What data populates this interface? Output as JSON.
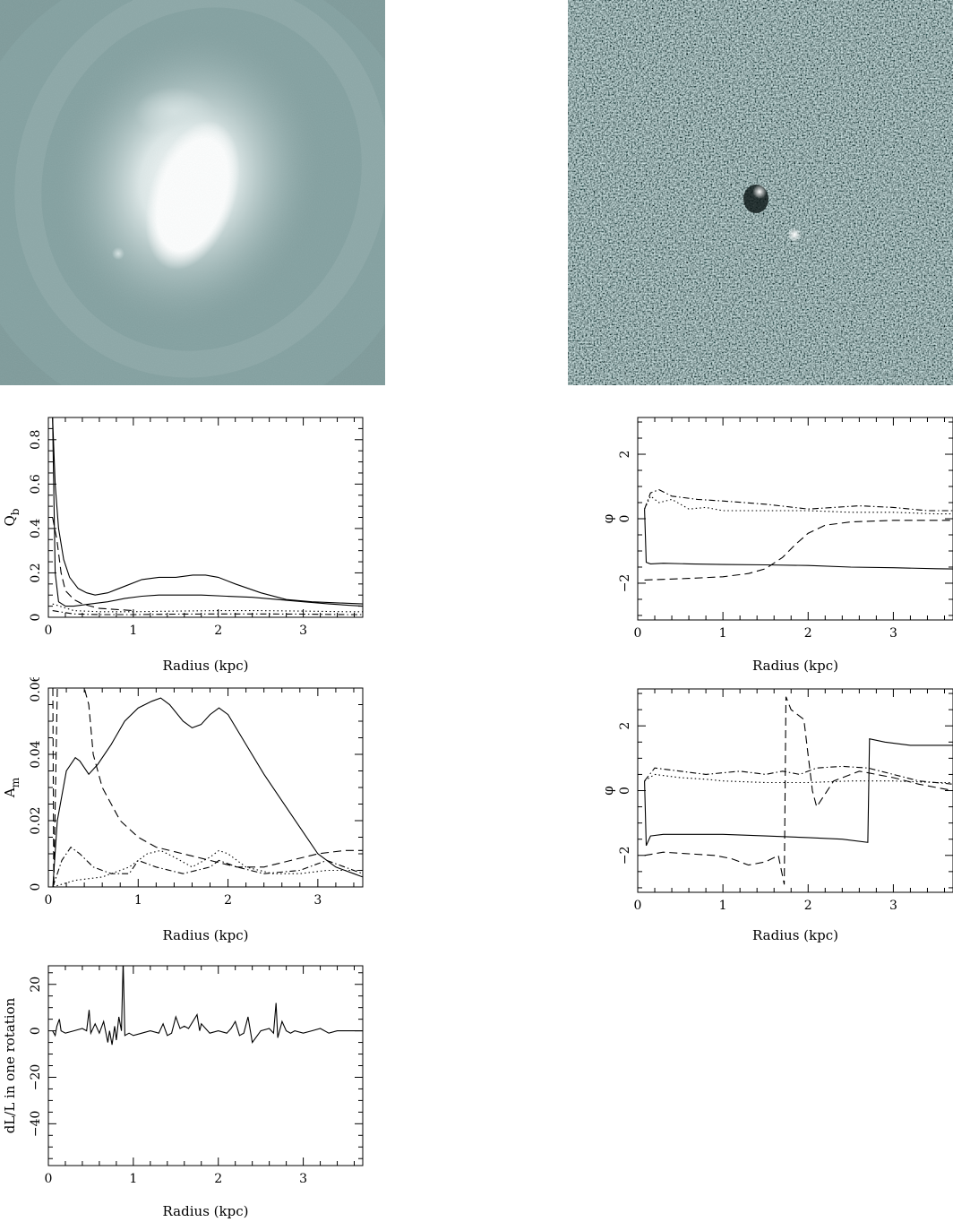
{
  "images": [
    {
      "name": "galaxy-image",
      "type": "image",
      "colors": {
        "bg": "#7f9a9a",
        "core": "#ffffff"
      }
    },
    {
      "name": "residual-image",
      "type": "image",
      "colors": {
        "bg": "#2f4848",
        "speck": "#cfe0e0"
      }
    }
  ],
  "chart_data": [
    {
      "id": "qb",
      "type": "line",
      "xlabel": "Radius (kpc)",
      "ylabel": "Q",
      "ylabel_sub": "b",
      "xlim": [
        0,
        3.7
      ],
      "ylim": [
        0,
        0.9
      ],
      "xticks": [
        0,
        1,
        2,
        3
      ],
      "yticks": [
        0,
        0.2,
        0.4,
        0.6,
        0.8
      ],
      "ytick_labels": [
        "0",
        "0.2",
        "0.4",
        "0.6",
        "0.8"
      ],
      "series": [
        {
          "style": "solid",
          "x": [
            0.05,
            0.08,
            0.12,
            0.18,
            0.25,
            0.35,
            0.45,
            0.55,
            0.7,
            0.9,
            1.1,
            1.3,
            1.5,
            1.7,
            1.85,
            2.0,
            2.2,
            2.5,
            2.8,
            3.1,
            3.4,
            3.7
          ],
          "y": [
            0.9,
            0.6,
            0.4,
            0.26,
            0.18,
            0.13,
            0.11,
            0.1,
            0.11,
            0.14,
            0.17,
            0.18,
            0.18,
            0.19,
            0.19,
            0.18,
            0.15,
            0.11,
            0.08,
            0.07,
            0.065,
            0.06
          ]
        },
        {
          "style": "solid",
          "x": [
            0.05,
            0.08,
            0.12,
            0.2,
            0.3,
            0.5,
            0.7,
            0.9,
            1.1,
            1.3,
            1.5,
            1.8,
            2.1,
            2.4,
            2.7,
            3.0,
            3.3,
            3.7
          ],
          "y": [
            0.9,
            0.2,
            0.07,
            0.05,
            0.05,
            0.06,
            0.07,
            0.085,
            0.095,
            0.1,
            0.1,
            0.1,
            0.095,
            0.09,
            0.08,
            0.07,
            0.06,
            0.05
          ]
        },
        {
          "style": "dashed",
          "x": [
            0.05,
            0.1,
            0.15,
            0.2,
            0.3,
            0.4,
            0.5,
            0.6,
            0.8,
            1.0
          ],
          "y": [
            0.45,
            0.35,
            0.2,
            0.12,
            0.08,
            0.06,
            0.05,
            0.04,
            0.035,
            0.03
          ]
        },
        {
          "style": "dotted",
          "x": [
            0.05,
            0.3,
            0.6,
            1.0,
            1.5,
            2.0,
            2.5,
            3.0,
            3.5,
            3.7
          ],
          "y": [
            0.06,
            0.03,
            0.025,
            0.025,
            0.028,
            0.03,
            0.03,
            0.028,
            0.025,
            0.025
          ]
        },
        {
          "style": "dashdot",
          "x": [
            0.05,
            0.3,
            0.6,
            1.0,
            1.5,
            2.0,
            2.5,
            3.0,
            3.5,
            3.7
          ],
          "y": [
            0.03,
            0.015,
            0.012,
            0.012,
            0.014,
            0.015,
            0.015,
            0.014,
            0.012,
            0.012
          ]
        }
      ]
    },
    {
      "id": "phi1",
      "type": "line",
      "xlabel": "Radius (kpc)",
      "ylabel": "φ",
      "xlim": [
        0,
        3.7
      ],
      "ylim": [
        -3.14,
        3.14
      ],
      "xticks": [
        0,
        1,
        2,
        3
      ],
      "yticks": [
        -2,
        0,
        2
      ],
      "ytick_labels": [
        "−2",
        "0",
        "2"
      ],
      "series": [
        {
          "style": "solid",
          "x": [
            0.08,
            0.1,
            0.15,
            0.3,
            0.6,
            1.0,
            1.5,
            2.0,
            2.5,
            3.0,
            3.5,
            3.7
          ],
          "y": [
            0.3,
            -1.35,
            -1.4,
            -1.38,
            -1.4,
            -1.42,
            -1.43,
            -1.45,
            -1.5,
            -1.52,
            -1.55,
            -1.56
          ]
        },
        {
          "style": "dashed",
          "x": [
            0.08,
            0.3,
            0.6,
            1.0,
            1.3,
            1.5,
            1.7,
            1.85,
            2.0,
            2.2,
            2.5,
            3.0,
            3.5,
            3.7
          ],
          "y": [
            -1.9,
            -1.88,
            -1.85,
            -1.8,
            -1.7,
            -1.55,
            -1.2,
            -0.8,
            -0.45,
            -0.2,
            -0.1,
            -0.05,
            -0.05,
            -0.05
          ]
        },
        {
          "style": "dotted",
          "x": [
            0.08,
            0.15,
            0.25,
            0.4,
            0.6,
            0.8,
            1.0,
            1.5,
            2.0,
            2.5,
            3.0,
            3.5,
            3.7
          ],
          "y": [
            0.3,
            0.7,
            0.5,
            0.6,
            0.3,
            0.35,
            0.25,
            0.25,
            0.25,
            0.2,
            0.2,
            0.15,
            0.15
          ]
        },
        {
          "style": "dashdot",
          "x": [
            0.08,
            0.15,
            0.25,
            0.4,
            0.7,
            1.0,
            1.5,
            2.0,
            2.3,
            2.6,
            3.0,
            3.4,
            3.7
          ],
          "y": [
            0.3,
            0.8,
            0.9,
            0.7,
            0.6,
            0.55,
            0.45,
            0.3,
            0.35,
            0.4,
            0.35,
            0.25,
            0.25
          ]
        }
      ]
    },
    {
      "id": "am",
      "type": "line",
      "xlabel": "Radius (kpc)",
      "ylabel": "A",
      "ylabel_sub": "m",
      "xlim": [
        0,
        3.5
      ],
      "ylim": [
        0,
        0.06
      ],
      "xticks": [
        0,
        1,
        2,
        3
      ],
      "yticks": [
        0,
        0.02,
        0.04,
        0.06
      ],
      "ytick_labels": [
        "0",
        "0.02",
        "0.04",
        "0.06"
      ],
      "series": [
        {
          "style": "solid",
          "x": [
            0.05,
            0.1,
            0.2,
            0.3,
            0.35,
            0.45,
            0.55,
            0.7,
            0.85,
            1.0,
            1.15,
            1.25,
            1.35,
            1.5,
            1.6,
            1.7,
            1.8,
            1.9,
            2.0,
            2.2,
            2.4,
            2.6,
            2.8,
            3.0,
            3.2,
            3.4,
            3.5
          ],
          "y": [
            0.0,
            0.02,
            0.035,
            0.039,
            0.038,
            0.034,
            0.037,
            0.043,
            0.05,
            0.054,
            0.056,
            0.057,
            0.055,
            0.05,
            0.048,
            0.049,
            0.052,
            0.054,
            0.052,
            0.043,
            0.034,
            0.026,
            0.018,
            0.01,
            0.006,
            0.004,
            0.003
          ]
        },
        {
          "style": "dashed",
          "x": [
            0.05,
            0.06,
            0.1,
            0.3,
            0.35,
            0.4,
            0.45,
            0.5,
            0.6,
            0.8,
            1.0,
            1.2,
            1.5,
            1.8,
            2.1,
            2.4,
            2.7,
            3.0,
            3.3,
            3.5
          ],
          "y": [
            0.06,
            0.0,
            0.06,
            0.06,
            0.06,
            0.06,
            0.055,
            0.04,
            0.03,
            0.02,
            0.015,
            0.012,
            0.01,
            0.008,
            0.006,
            0.006,
            0.008,
            0.01,
            0.011,
            0.011
          ]
        },
        {
          "style": "dotted",
          "x": [
            0.05,
            0.3,
            0.6,
            0.9,
            1.1,
            1.25,
            1.4,
            1.6,
            1.8,
            1.9,
            2.0,
            2.2,
            2.5,
            2.8,
            3.1,
            3.5
          ],
          "y": [
            0.0,
            0.002,
            0.003,
            0.006,
            0.01,
            0.011,
            0.009,
            0.006,
            0.009,
            0.011,
            0.01,
            0.006,
            0.004,
            0.004,
            0.005,
            0.005
          ]
        },
        {
          "style": "dashdot",
          "x": [
            0.05,
            0.15,
            0.25,
            0.35,
            0.5,
            0.7,
            0.9,
            1.0,
            1.2,
            1.5,
            1.8,
            1.9,
            2.1,
            2.4,
            2.8,
            3.1,
            3.3,
            3.5
          ],
          "y": [
            0.0,
            0.008,
            0.012,
            0.01,
            0.006,
            0.004,
            0.004,
            0.008,
            0.006,
            0.004,
            0.006,
            0.008,
            0.006,
            0.004,
            0.005,
            0.008,
            0.006,
            0.004
          ]
        }
      ]
    },
    {
      "id": "phi2",
      "type": "line",
      "xlabel": "Radius (kpc)",
      "ylabel": "φ",
      "xlim": [
        0,
        3.7
      ],
      "ylim": [
        -3.14,
        3.14
      ],
      "xticks": [
        0,
        1,
        2,
        3
      ],
      "yticks": [
        -2,
        0,
        2
      ],
      "ytick_labels": [
        "−2",
        "0",
        "2"
      ],
      "series": [
        {
          "style": "solid",
          "x": [
            0.08,
            0.1,
            0.15,
            0.3,
            0.6,
            1.0,
            1.5,
            2.0,
            2.4,
            2.7,
            2.72,
            2.9,
            3.2,
            3.5,
            3.7
          ],
          "y": [
            0.3,
            -1.7,
            -1.4,
            -1.35,
            -1.35,
            -1.35,
            -1.4,
            -1.45,
            -1.5,
            -1.6,
            1.6,
            1.5,
            1.4,
            1.4,
            1.4
          ]
        },
        {
          "style": "dashed",
          "x": [
            0.08,
            0.3,
            0.6,
            0.9,
            1.1,
            1.3,
            1.5,
            1.65,
            1.72,
            1.74,
            1.8,
            1.95,
            2.05,
            2.1,
            2.3,
            2.6,
            3.0,
            3.3,
            3.7
          ],
          "y": [
            -2.0,
            -1.9,
            -1.95,
            -2.0,
            -2.1,
            -2.3,
            -2.2,
            -2.0,
            -2.9,
            2.9,
            2.5,
            2.2,
            0.0,
            -0.5,
            0.3,
            0.6,
            0.4,
            0.2,
            0.0
          ]
        },
        {
          "style": "dotted",
          "x": [
            0.08,
            0.2,
            0.5,
            0.8,
            1.0,
            1.5,
            2.0,
            2.5,
            3.0,
            3.5,
            3.7
          ],
          "y": [
            0.3,
            0.5,
            0.4,
            0.35,
            0.3,
            0.25,
            0.25,
            0.3,
            0.3,
            0.25,
            0.25
          ]
        },
        {
          "style": "dashdot",
          "x": [
            0.08,
            0.2,
            0.5,
            0.8,
            1.0,
            1.2,
            1.5,
            1.7,
            1.9,
            2.1,
            2.4,
            2.7,
            3.0,
            3.3,
            3.7
          ],
          "y": [
            0.3,
            0.7,
            0.6,
            0.5,
            0.55,
            0.6,
            0.5,
            0.6,
            0.5,
            0.7,
            0.75,
            0.7,
            0.5,
            0.3,
            0.2
          ]
        }
      ]
    },
    {
      "id": "dl",
      "type": "line",
      "xlabel": "Radius (kpc)",
      "ylabel": "dL/L in one rotation",
      "xlim": [
        0,
        3.7
      ],
      "ylim": [
        -58,
        28
      ],
      "xticks": [
        0,
        1,
        2,
        3
      ],
      "yticks": [
        -40,
        -20,
        0,
        20
      ],
      "ytick_labels": [
        "−40",
        "−20",
        "0",
        "20"
      ],
      "series": [
        {
          "style": "solid",
          "x": [
            0.05,
            0.08,
            0.1,
            0.13,
            0.15,
            0.2,
            0.3,
            0.4,
            0.45,
            0.48,
            0.5,
            0.55,
            0.6,
            0.65,
            0.7,
            0.72,
            0.75,
            0.78,
            0.8,
            0.83,
            0.86,
            0.88,
            0.9,
            0.95,
            1.0,
            1.1,
            1.2,
            1.3,
            1.35,
            1.4,
            1.45,
            1.5,
            1.55,
            1.6,
            1.65,
            1.7,
            1.75,
            1.78,
            1.8,
            1.9,
            2.0,
            2.1,
            2.15,
            2.2,
            2.25,
            2.3,
            2.35,
            2.4,
            2.5,
            2.6,
            2.65,
            2.68,
            2.7,
            2.75,
            2.8,
            2.85,
            2.9,
            3.0,
            3.1,
            3.2,
            3.3,
            3.4,
            3.5,
            3.7
          ],
          "y": [
            0,
            -2,
            2,
            5,
            0,
            -1,
            0,
            1,
            0,
            9,
            -1,
            3,
            -1,
            4,
            -5,
            0,
            -6,
            2,
            -4,
            6,
            0,
            30,
            -2,
            -1,
            -2,
            -1,
            0,
            -1,
            3,
            -2,
            -1,
            6,
            1,
            2,
            1,
            4,
            7,
            0,
            3,
            -1,
            0,
            -1,
            1,
            4,
            -2,
            -1,
            6,
            -5,
            0,
            1,
            -1,
            12,
            -3,
            4,
            0,
            -1,
            0,
            -1,
            0,
            1,
            -1,
            0,
            0,
            0
          ]
        }
      ]
    }
  ]
}
